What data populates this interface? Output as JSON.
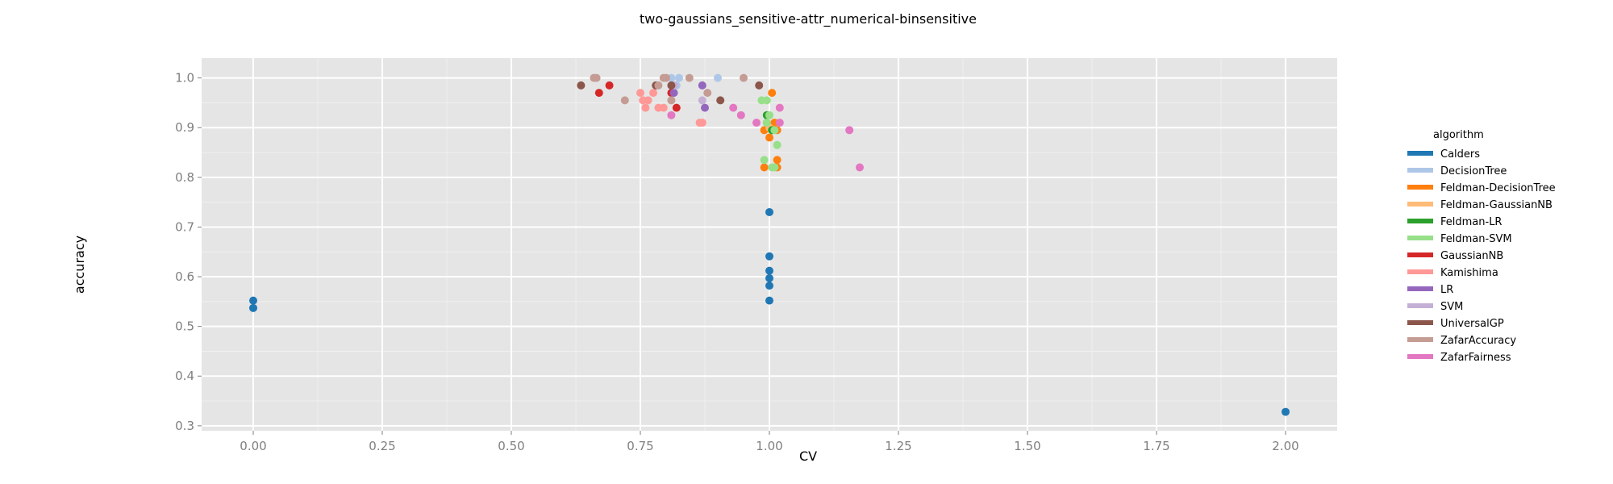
{
  "chart_data": {
    "type": "scatter",
    "title": "two-gaussians_sensitive-attr_numerical-binsensitive",
    "xlabel": "CV",
    "ylabel": "accuracy",
    "xlim": [
      -0.1,
      2.1
    ],
    "ylim": [
      0.29,
      1.04
    ],
    "x_ticks": [
      "0.00",
      "0.25",
      "0.50",
      "0.75",
      "1.00",
      "1.25",
      "1.50",
      "1.75",
      "2.00"
    ],
    "y_ticks": [
      "0.3",
      "0.4",
      "0.5",
      "0.6",
      "0.7",
      "0.8",
      "0.9",
      "1.0"
    ],
    "grid": true,
    "legend_position": "right",
    "legend_title": "algorithm",
    "series": [
      {
        "name": "Calders",
        "color": "#1f77b4",
        "points": [
          [
            0.0,
            0.552
          ],
          [
            0.0,
            0.537
          ],
          [
            1.0,
            0.73
          ],
          [
            1.0,
            0.641
          ],
          [
            1.0,
            0.612
          ],
          [
            1.0,
            0.597
          ],
          [
            1.0,
            0.582
          ],
          [
            1.0,
            0.552
          ],
          [
            2.0,
            0.328
          ]
        ]
      },
      {
        "name": "DecisionTree",
        "color": "#aec7e8",
        "points": [
          [
            0.81,
            1.0
          ],
          [
            0.825,
            1.0
          ],
          [
            0.9,
            1.0
          ],
          [
            0.82,
            0.985
          ]
        ]
      },
      {
        "name": "Feldman-DecisionTree",
        "color": "#ff7f0e",
        "points": [
          [
            1.005,
            0.97
          ],
          [
            0.995,
            0.91
          ],
          [
            1.01,
            0.91
          ],
          [
            1.015,
            0.895
          ],
          [
            0.99,
            0.895
          ],
          [
            1.0,
            0.88
          ],
          [
            1.015,
            0.835
          ],
          [
            0.99,
            0.82
          ],
          [
            1.015,
            0.82
          ]
        ]
      },
      {
        "name": "Feldman-GaussianNB",
        "color": "#ffbb78",
        "points": [
          [
            1.0,
            0.9
          ]
        ]
      },
      {
        "name": "Feldman-LR",
        "color": "#2ca02c",
        "points": [
          [
            0.995,
            0.925
          ],
          [
            1.005,
            0.895
          ]
        ]
      },
      {
        "name": "Feldman-SVM",
        "color": "#98df8a",
        "points": [
          [
            0.985,
            0.955
          ],
          [
            0.995,
            0.955
          ],
          [
            1.0,
            0.925
          ],
          [
            0.995,
            0.91
          ],
          [
            1.01,
            0.895
          ],
          [
            1.015,
            0.865
          ],
          [
            0.99,
            0.835
          ],
          [
            1.005,
            0.82
          ],
          [
            1.01,
            0.82
          ]
        ]
      },
      {
        "name": "GaussianNB",
        "color": "#d62728",
        "points": [
          [
            0.69,
            0.985
          ],
          [
            0.67,
            0.97
          ],
          [
            0.81,
            0.97
          ],
          [
            0.82,
            0.94
          ]
        ]
      },
      {
        "name": "Kamishima",
        "color": "#ff9896",
        "points": [
          [
            0.75,
            0.97
          ],
          [
            0.775,
            0.97
          ],
          [
            0.755,
            0.955
          ],
          [
            0.765,
            0.955
          ],
          [
            0.76,
            0.94
          ],
          [
            0.785,
            0.94
          ],
          [
            0.795,
            0.94
          ],
          [
            0.87,
            0.91
          ],
          [
            0.865,
            0.91
          ]
        ]
      },
      {
        "name": "LR",
        "color": "#9467bd",
        "points": [
          [
            0.87,
            0.985
          ],
          [
            0.815,
            0.97
          ],
          [
            0.875,
            0.94
          ]
        ]
      },
      {
        "name": "SVM",
        "color": "#c5b0d5",
        "points": [
          [
            0.815,
            0.985
          ],
          [
            0.87,
            0.955
          ]
        ]
      },
      {
        "name": "UniversalGP",
        "color": "#8c564b",
        "points": [
          [
            0.635,
            0.985
          ],
          [
            0.78,
            0.985
          ],
          [
            0.81,
            0.985
          ],
          [
            0.98,
            0.985
          ],
          [
            0.905,
            0.955
          ]
        ]
      },
      {
        "name": "ZafarAccuracy",
        "color": "#c49c94",
        "points": [
          [
            0.66,
            1.0
          ],
          [
            0.665,
            1.0
          ],
          [
            0.795,
            1.0
          ],
          [
            0.8,
            1.0
          ],
          [
            0.845,
            1.0
          ],
          [
            0.95,
            1.0
          ],
          [
            0.785,
            0.985
          ],
          [
            0.88,
            0.97
          ],
          [
            0.72,
            0.955
          ],
          [
            0.81,
            0.955
          ]
        ]
      },
      {
        "name": "ZafarFairness",
        "color": "#e377c2",
        "points": [
          [
            0.93,
            0.94
          ],
          [
            1.02,
            0.94
          ],
          [
            0.945,
            0.925
          ],
          [
            0.81,
            0.925
          ],
          [
            0.975,
            0.91
          ],
          [
            1.02,
            0.91
          ],
          [
            1.155,
            0.895
          ],
          [
            1.175,
            0.82
          ]
        ]
      }
    ]
  }
}
